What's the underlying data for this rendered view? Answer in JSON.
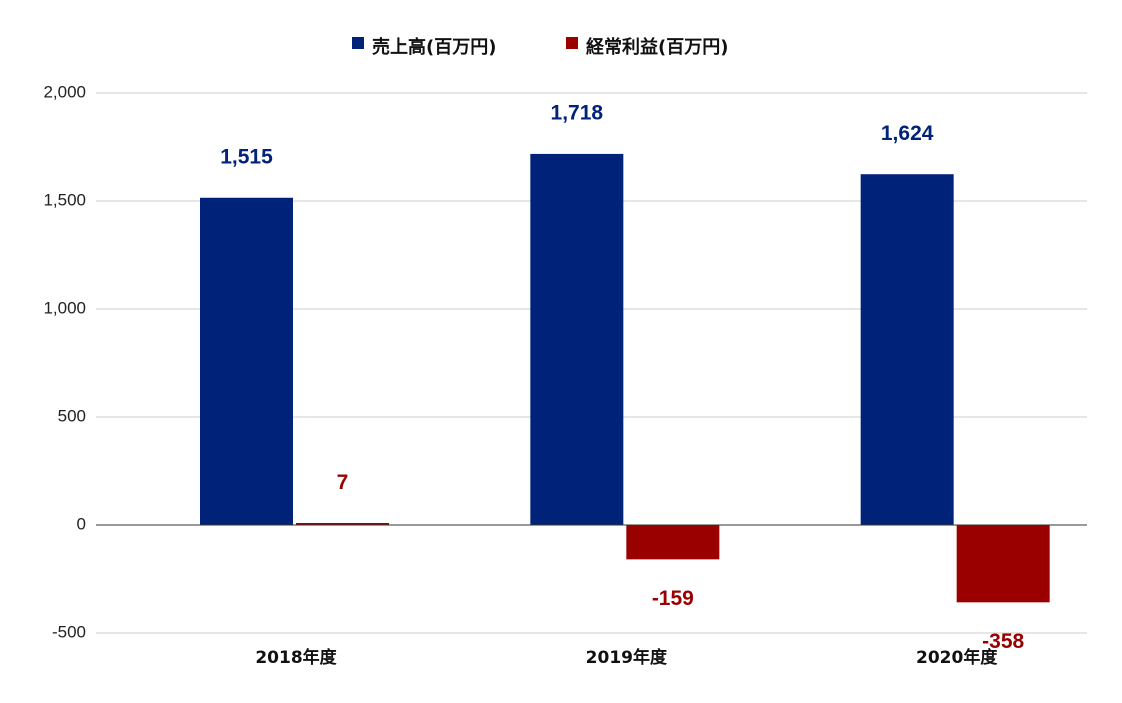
{
  "chart_data": {
    "type": "bar",
    "categories": [
      "2018年度",
      "2019年度",
      "2020年度"
    ],
    "series": [
      {
        "name": "売上高(百万円)",
        "color": "#00237a",
        "values": [
          1515,
          1718,
          1624
        ],
        "labels": [
          "1,515",
          "1,718",
          "1,624"
        ]
      },
      {
        "name": "経常利益(百万円)",
        "color": "#9a0000",
        "values": [
          7,
          -159,
          -358
        ],
        "labels": [
          "7",
          "-159",
          "-358"
        ]
      }
    ],
    "ylim": [
      -500,
      2000
    ],
    "yticks": [
      2000,
      1500,
      1000,
      500,
      0,
      -500
    ],
    "ytick_labels": [
      "2,000",
      "1,500",
      "1,000",
      "500",
      "0",
      "-500"
    ],
    "grid": true,
    "legend_position": "top-center",
    "title": "",
    "xlabel": "",
    "ylabel": ""
  }
}
